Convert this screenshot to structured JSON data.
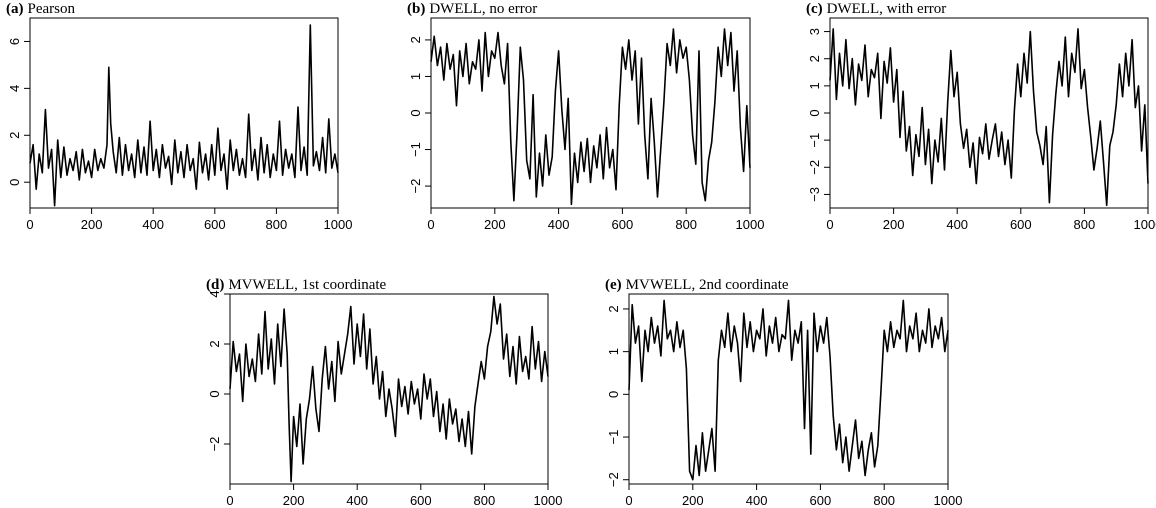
{
  "chart_data": [
    {
      "type": "line",
      "title_letter": "(a)",
      "title_text": "Pearson",
      "xlim": [
        0,
        1000
      ],
      "ylim": [
        -1.1,
        7.0
      ],
      "xticks": [
        "0",
        "200",
        "400",
        "600",
        "800",
        "1000"
      ],
      "yticks": [
        "0",
        "2",
        "4",
        "6"
      ],
      "series": [
        {
          "x": [
            0,
            10,
            20,
            30,
            40,
            50,
            60,
            70,
            80,
            90,
            100,
            110,
            120,
            130,
            140,
            150,
            160,
            170,
            180,
            190,
            200,
            210,
            220,
            230,
            240,
            250,
            256,
            262,
            270,
            280,
            290,
            300,
            310,
            320,
            330,
            340,
            350,
            360,
            370,
            380,
            390,
            400,
            410,
            420,
            430,
            440,
            450,
            460,
            470,
            480,
            490,
            500,
            510,
            520,
            530,
            540,
            550,
            560,
            570,
            580,
            590,
            600,
            610,
            620,
            630,
            640,
            650,
            660,
            670,
            680,
            690,
            700,
            710,
            720,
            730,
            740,
            750,
            760,
            770,
            780,
            790,
            800,
            810,
            820,
            830,
            840,
            850,
            860,
            870,
            880,
            890,
            900,
            910,
            920,
            930,
            940,
            950,
            960,
            970,
            980,
            990,
            1000
          ],
          "y": [
            0.8,
            1.6,
            -0.3,
            1.2,
            0.4,
            3.1,
            0.6,
            1.4,
            -1.0,
            1.8,
            0.2,
            1.5,
            0.3,
            1.0,
            0.5,
            1.3,
            0.1,
            1.4,
            0.4,
            0.9,
            0.2,
            1.4,
            0.5,
            1.0,
            0.6,
            1.6,
            4.9,
            2.5,
            1.3,
            0.4,
            1.9,
            0.3,
            1.6,
            0.5,
            1.2,
            0.2,
            1.8,
            0.4,
            1.5,
            0.3,
            2.6,
            0.5,
            1.4,
            0.2,
            1.6,
            0.6,
            1.1,
            -0.1,
            1.8,
            0.4,
            1.3,
            0.2,
            1.6,
            0.5,
            1.0,
            -0.3,
            1.7,
            0.4,
            1.2,
            0.1,
            1.6,
            0.3,
            2.3,
            0.5,
            1.2,
            -0.3,
            1.8,
            0.5,
            1.4,
            0.3,
            1.0,
            0.2,
            2.9,
            0.5,
            1.4,
            0.1,
            1.9,
            0.4,
            1.6,
            0.2,
            1.2,
            0.5,
            2.6,
            0.3,
            1.4,
            0.6,
            1.2,
            0.2,
            3.2,
            0.5,
            1.5,
            0.3,
            6.7,
            0.7,
            1.3,
            0.5,
            1.9,
            0.4,
            2.7,
            0.6,
            1.2,
            0.4
          ]
        }
      ]
    },
    {
      "type": "line",
      "title_letter": "(b)",
      "title_text": "DWELL, no error",
      "xlim": [
        0,
        1000
      ],
      "ylim": [
        -2.6,
        2.6
      ],
      "xticks": [
        "0",
        "200",
        "400",
        "600",
        "800",
        "1000"
      ],
      "yticks": [
        "−2",
        "−1",
        "0",
        "1",
        "2"
      ],
      "series": [
        {
          "x": [
            0,
            10,
            20,
            30,
            40,
            50,
            60,
            70,
            80,
            90,
            100,
            110,
            120,
            130,
            140,
            150,
            160,
            170,
            180,
            190,
            200,
            210,
            220,
            230,
            240,
            250,
            260,
            270,
            280,
            290,
            300,
            310,
            320,
            330,
            340,
            350,
            360,
            370,
            380,
            390,
            400,
            410,
            420,
            430,
            440,
            450,
            460,
            470,
            480,
            490,
            500,
            510,
            520,
            530,
            540,
            550,
            560,
            570,
            580,
            590,
            600,
            610,
            620,
            630,
            640,
            650,
            660,
            670,
            680,
            690,
            700,
            710,
            720,
            730,
            740,
            750,
            760,
            770,
            780,
            790,
            800,
            810,
            820,
            830,
            840,
            850,
            860,
            870,
            880,
            890,
            900,
            910,
            920,
            930,
            940,
            950,
            960,
            970,
            980,
            990,
            1000
          ],
          "y": [
            1.4,
            2.1,
            1.3,
            1.8,
            0.9,
            1.9,
            1.2,
            1.6,
            0.2,
            1.7,
            1.0,
            1.9,
            0.8,
            1.4,
            1.2,
            2.0,
            0.6,
            2.2,
            1.0,
            1.7,
            1.5,
            2.2,
            1.3,
            0.8,
            1.9,
            -0.8,
            -2.4,
            -0.5,
            1.8,
            0.9,
            -1.3,
            -1.8,
            0.5,
            -2.3,
            -1.1,
            -2.0,
            -0.6,
            -1.7,
            -1.2,
            0.6,
            1.7,
            0.1,
            -1.0,
            0.4,
            -2.5,
            -1.1,
            -1.9,
            -0.8,
            -1.6,
            -0.7,
            -1.9,
            -0.9,
            -1.5,
            -0.6,
            -1.8,
            -0.4,
            -1.5,
            -1.0,
            -2.1,
            0.2,
            1.8,
            1.2,
            2.0,
            0.9,
            1.7,
            -0.3,
            1.5,
            -0.6,
            -1.8,
            0.4,
            -0.8,
            -2.3,
            -1.0,
            0.3,
            1.9,
            1.3,
            2.3,
            1.1,
            2.0,
            1.5,
            1.8,
            0.9,
            -0.6,
            -1.4,
            1.7,
            -1.9,
            -2.4,
            -1.3,
            -0.8,
            0.3,
            1.8,
            1.0,
            2.3,
            1.3,
            2.2,
            0.6,
            1.7,
            -0.4,
            -1.6,
            0.2,
            -1.5
          ]
        }
      ]
    },
    {
      "type": "line",
      "title_letter": "(c)",
      "title_text": "DWELL, with error",
      "xlim": [
        0,
        1000
      ],
      "ylim": [
        -3.5,
        3.5
      ],
      "xticks": [
        "0",
        "200",
        "400",
        "600",
        "800",
        "1000"
      ],
      "yticks": [
        "−3",
        "−2",
        "−1",
        "0",
        "1",
        "2",
        "3"
      ],
      "series": [
        {
          "x": [
            0,
            10,
            20,
            30,
            40,
            50,
            60,
            70,
            80,
            90,
            100,
            110,
            120,
            130,
            140,
            150,
            160,
            170,
            180,
            190,
            200,
            210,
            220,
            230,
            240,
            250,
            260,
            270,
            280,
            290,
            300,
            310,
            320,
            330,
            340,
            350,
            360,
            370,
            380,
            390,
            400,
            410,
            420,
            430,
            440,
            450,
            460,
            470,
            480,
            490,
            500,
            510,
            520,
            530,
            540,
            550,
            560,
            570,
            580,
            590,
            600,
            610,
            620,
            630,
            640,
            650,
            660,
            670,
            680,
            690,
            700,
            710,
            720,
            730,
            740,
            750,
            760,
            770,
            780,
            790,
            800,
            810,
            820,
            830,
            840,
            850,
            860,
            870,
            880,
            890,
            900,
            910,
            920,
            930,
            940,
            950,
            960,
            970,
            980,
            990,
            1000
          ],
          "y": [
            1.2,
            3.1,
            0.5,
            2.2,
            1.0,
            2.7,
            0.9,
            2.0,
            0.3,
            1.8,
            1.2,
            2.5,
            0.6,
            1.6,
            1.3,
            2.2,
            -0.2,
            1.9,
            1.1,
            2.4,
            0.4,
            1.6,
            -0.9,
            0.8,
            -1.4,
            -0.5,
            -2.3,
            -0.8,
            -1.6,
            0.2,
            -1.9,
            -0.6,
            -2.6,
            -1.0,
            -1.8,
            -0.2,
            -2.1,
            0.4,
            2.3,
            0.6,
            1.5,
            -0.4,
            -1.3,
            -0.6,
            -2.0,
            -1.1,
            -2.6,
            -0.9,
            -1.5,
            -0.4,
            -1.7,
            -1.0,
            -0.4,
            -1.6,
            -0.7,
            -1.9,
            -1.0,
            -2.4,
            0.1,
            1.8,
            0.6,
            2.2,
            1.1,
            3.0,
            0.8,
            -0.7,
            -1.2,
            -1.9,
            -0.5,
            -3.3,
            -0.8,
            0.7,
            1.9,
            1.0,
            2.8,
            0.6,
            2.2,
            1.5,
            3.1,
            0.9,
            1.6,
            0.2,
            -0.9,
            -2.1,
            -1.3,
            -0.3,
            -1.8,
            -3.4,
            -1.2,
            -0.7,
            0.3,
            1.8,
            0.6,
            2.2,
            1.0,
            2.7,
            0.2,
            1.0,
            -1.4,
            0.3,
            -2.6
          ]
        }
      ]
    },
    {
      "type": "line",
      "title_letter": "(d)",
      "title_text": "MVWELL, 1st coordinate",
      "xlim": [
        0,
        1000
      ],
      "ylim": [
        -3.6,
        4.0
      ],
      "xticks": [
        "0",
        "200",
        "400",
        "600",
        "800",
        "1000"
      ],
      "yticks": [
        "−2",
        "0",
        "2",
        "4"
      ],
      "series": [
        {
          "x": [
            0,
            10,
            20,
            30,
            40,
            50,
            60,
            70,
            80,
            90,
            100,
            110,
            120,
            130,
            140,
            150,
            160,
            170,
            180,
            186,
            192,
            200,
            210,
            220,
            230,
            240,
            250,
            260,
            270,
            280,
            290,
            300,
            310,
            320,
            330,
            340,
            350,
            360,
            370,
            380,
            390,
            400,
            410,
            420,
            430,
            440,
            450,
            460,
            470,
            480,
            490,
            500,
            510,
            520,
            530,
            540,
            550,
            560,
            570,
            580,
            590,
            600,
            610,
            620,
            630,
            640,
            650,
            660,
            670,
            680,
            690,
            700,
            710,
            720,
            730,
            740,
            750,
            760,
            770,
            780,
            790,
            800,
            810,
            820,
            830,
            840,
            850,
            860,
            870,
            880,
            890,
            900,
            910,
            920,
            930,
            940,
            950,
            960,
            970,
            980,
            990,
            1000
          ],
          "y": [
            0.2,
            2.1,
            0.9,
            1.6,
            -0.3,
            2.0,
            0.7,
            1.4,
            0.5,
            2.4,
            0.8,
            3.3,
            1.0,
            2.2,
            0.4,
            2.8,
            1.1,
            3.4,
            1.6,
            -1.2,
            -3.5,
            -0.9,
            -2.1,
            -0.4,
            -2.8,
            -1.0,
            -0.2,
            1.1,
            -0.6,
            -1.5,
            0.6,
            1.9,
            0.2,
            1.3,
            -0.3,
            2.1,
            0.8,
            1.6,
            2.4,
            3.5,
            1.2,
            2.8,
            1.5,
            3.2,
            1.0,
            2.6,
            0.4,
            1.5,
            -0.2,
            0.9,
            -0.9,
            0.2,
            -0.6,
            -1.7,
            0.6,
            -0.5,
            0.3,
            -0.8,
            0.5,
            -0.4,
            0.2,
            -1.0,
            0.8,
            -0.2,
            0.6,
            -0.9,
            0.1,
            -1.5,
            -0.4,
            -1.8,
            -0.2,
            -1.2,
            -0.6,
            -1.9,
            -1.0,
            -2.1,
            -0.7,
            -2.4,
            -0.5,
            0.4,
            1.3,
            0.6,
            1.9,
            2.5,
            3.9,
            2.8,
            3.6,
            1.4,
            2.4,
            0.7,
            1.9,
            0.4,
            2.3,
            0.9,
            1.5,
            0.6,
            2.7,
            1.0,
            2.1,
            0.5,
            1.7,
            0.7
          ]
        }
      ]
    },
    {
      "type": "line",
      "title_letter": "(e)",
      "title_text": "MVWELL, 2nd coordinate",
      "xlim": [
        0,
        1000
      ],
      "ylim": [
        -2.1,
        2.35
      ],
      "xticks": [
        "0",
        "200",
        "400",
        "600",
        "800",
        "1000"
      ],
      "yticks": [
        "−2",
        "−1",
        "0",
        "1",
        "2"
      ],
      "series": [
        {
          "x": [
            0,
            10,
            20,
            30,
            40,
            50,
            60,
            70,
            80,
            90,
            100,
            110,
            120,
            130,
            140,
            150,
            160,
            170,
            180,
            190,
            200,
            210,
            220,
            230,
            240,
            250,
            260,
            270,
            280,
            290,
            300,
            310,
            320,
            330,
            340,
            350,
            360,
            370,
            380,
            390,
            400,
            410,
            420,
            430,
            440,
            450,
            460,
            470,
            480,
            490,
            500,
            510,
            520,
            530,
            540,
            550,
            560,
            570,
            580,
            590,
            600,
            610,
            620,
            630,
            640,
            650,
            660,
            670,
            680,
            690,
            700,
            710,
            720,
            730,
            740,
            750,
            760,
            770,
            780,
            790,
            800,
            810,
            820,
            830,
            840,
            850,
            860,
            870,
            880,
            890,
            900,
            910,
            920,
            930,
            940,
            950,
            960,
            970,
            980,
            990,
            1000
          ],
          "y": [
            0.1,
            2.1,
            1.2,
            1.6,
            0.3,
            1.5,
            1.0,
            1.8,
            1.2,
            1.6,
            0.9,
            2.2,
            1.3,
            1.5,
            1.0,
            1.7,
            1.1,
            1.5,
            0.6,
            -1.8,
            -2.0,
            -1.2,
            -1.9,
            -0.9,
            -1.8,
            -1.3,
            -0.8,
            -1.8,
            0.8,
            1.5,
            1.1,
            1.9,
            1.0,
            1.6,
            1.2,
            0.3,
            1.9,
            1.1,
            1.7,
            1.0,
            1.5,
            1.3,
            2.0,
            0.9,
            1.6,
            1.2,
            1.8,
            1.0,
            1.4,
            1.3,
            2.2,
            0.8,
            1.5,
            1.2,
            1.7,
            -0.8,
            1.5,
            -1.4,
            1.9,
            1.0,
            1.6,
            1.2,
            1.8,
            0.9,
            -0.5,
            -1.3,
            -0.7,
            -1.6,
            -1.0,
            -1.8,
            -1.2,
            -0.6,
            -1.5,
            -1.1,
            -1.9,
            -1.3,
            -0.9,
            -1.7,
            -1.2,
            0.1,
            1.5,
            1.0,
            1.7,
            1.1,
            1.5,
            1.3,
            2.2,
            1.0,
            1.6,
            1.3,
            1.9,
            1.0,
            1.5,
            1.2,
            2.0,
            1.1,
            1.6,
            1.3,
            1.8,
            1.0,
            1.5
          ]
        }
      ]
    }
  ]
}
